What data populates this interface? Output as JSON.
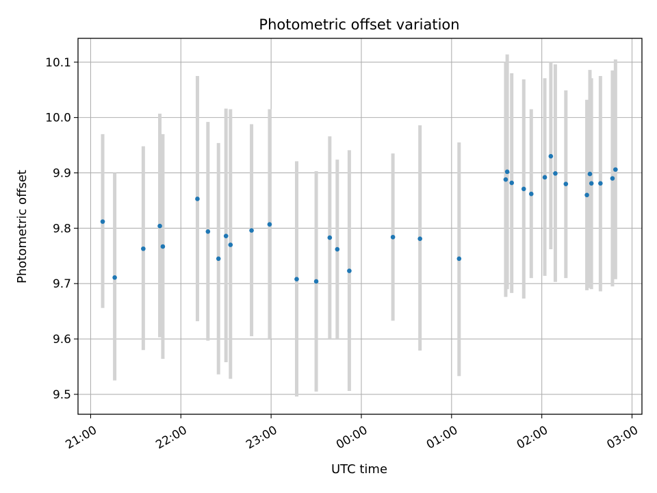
{
  "chart_data": {
    "type": "scatter",
    "title": "Photometric offset variation",
    "xlabel": "UTC time",
    "ylabel": "Photometric offset",
    "x_tick_labels": [
      "21:00",
      "22:00",
      "23:00",
      "00:00",
      "01:00",
      "02:00",
      "03:00"
    ],
    "x_tick_hours": [
      0,
      1,
      2,
      3,
      4,
      5,
      6
    ],
    "y_ticks": [
      9.5,
      9.6,
      9.7,
      9.8,
      9.9,
      10.0,
      10.1
    ],
    "y_tick_labels": [
      "9.5",
      "9.6",
      "9.7",
      "9.8",
      "9.9",
      "10.0",
      "10.1"
    ],
    "xlim_hours": [
      -0.14,
      6.11
    ],
    "ylim": [
      9.464,
      10.143
    ],
    "grid": true,
    "point_color": "#1f77b4",
    "errorbar_color": "#d3d3d3",
    "points": [
      {
        "t": "21:08",
        "y": 9.812,
        "lo": 9.656,
        "hi": 9.97
      },
      {
        "t": "21:16",
        "y": 9.711,
        "lo": 9.525,
        "hi": 9.9
      },
      {
        "t": "21:35",
        "y": 9.763,
        "lo": 9.58,
        "hi": 9.948
      },
      {
        "t": "21:46",
        "y": 9.804,
        "lo": 9.603,
        "hi": 10.007
      },
      {
        "t": "21:48",
        "y": 9.767,
        "lo": 9.564,
        "hi": 9.97
      },
      {
        "t": "22:11",
        "y": 9.853,
        "lo": 9.632,
        "hi": 10.075
      },
      {
        "t": "22:18",
        "y": 9.794,
        "lo": 9.597,
        "hi": 9.992
      },
      {
        "t": "22:25",
        "y": 9.745,
        "lo": 9.536,
        "hi": 9.954
      },
      {
        "t": "22:30",
        "y": 9.786,
        "lo": 9.558,
        "hi": 10.016
      },
      {
        "t": "22:33",
        "y": 9.77,
        "lo": 9.528,
        "hi": 10.015
      },
      {
        "t": "22:47",
        "y": 9.796,
        "lo": 9.605,
        "hi": 9.988
      },
      {
        "t": "22:59",
        "y": 9.807,
        "lo": 9.6,
        "hi": 10.015
      },
      {
        "t": "23:17",
        "y": 9.708,
        "lo": 9.496,
        "hi": 9.921
      },
      {
        "t": "23:30",
        "y": 9.704,
        "lo": 9.505,
        "hi": 9.903
      },
      {
        "t": "23:39",
        "y": 9.783,
        "lo": 9.6,
        "hi": 9.966
      },
      {
        "t": "23:44",
        "y": 9.762,
        "lo": 9.6,
        "hi": 9.924
      },
      {
        "t": "23:52",
        "y": 9.723,
        "lo": 9.506,
        "hi": 9.941
      },
      {
        "t": "00:21",
        "y": 9.784,
        "lo": 9.633,
        "hi": 9.935
      },
      {
        "t": "00:39",
        "y": 9.781,
        "lo": 9.579,
        "hi": 9.986
      },
      {
        "t": "01:05",
        "y": 9.745,
        "lo": 9.533,
        "hi": 9.955
      },
      {
        "t": "01:36",
        "y": 9.888,
        "lo": 9.676,
        "hi": 10.1
      },
      {
        "t": "01:37",
        "y": 9.902,
        "lo": 9.69,
        "hi": 10.114
      },
      {
        "t": "01:40",
        "y": 9.882,
        "lo": 9.683,
        "hi": 10.08
      },
      {
        "t": "01:48",
        "y": 9.871,
        "lo": 9.673,
        "hi": 10.069
      },
      {
        "t": "01:53",
        "y": 9.862,
        "lo": 9.71,
        "hi": 10.015
      },
      {
        "t": "02:02",
        "y": 9.892,
        "lo": 9.714,
        "hi": 10.071
      },
      {
        "t": "02:06",
        "y": 9.93,
        "lo": 9.762,
        "hi": 10.1
      },
      {
        "t": "02:09",
        "y": 9.899,
        "lo": 9.703,
        "hi": 10.096
      },
      {
        "t": "02:16",
        "y": 9.88,
        "lo": 9.71,
        "hi": 10.049
      },
      {
        "t": "02:30",
        "y": 9.86,
        "lo": 9.688,
        "hi": 10.032
      },
      {
        "t": "02:32",
        "y": 9.898,
        "lo": 9.692,
        "hi": 10.086
      },
      {
        "t": "02:33",
        "y": 9.881,
        "lo": 9.69,
        "hi": 10.071
      },
      {
        "t": "02:39",
        "y": 9.881,
        "lo": 9.686,
        "hi": 10.075
      },
      {
        "t": "02:47",
        "y": 9.89,
        "lo": 9.695,
        "hi": 10.085
      },
      {
        "t": "02:49",
        "y": 9.906,
        "lo": 9.708,
        "hi": 10.105
      }
    ]
  }
}
